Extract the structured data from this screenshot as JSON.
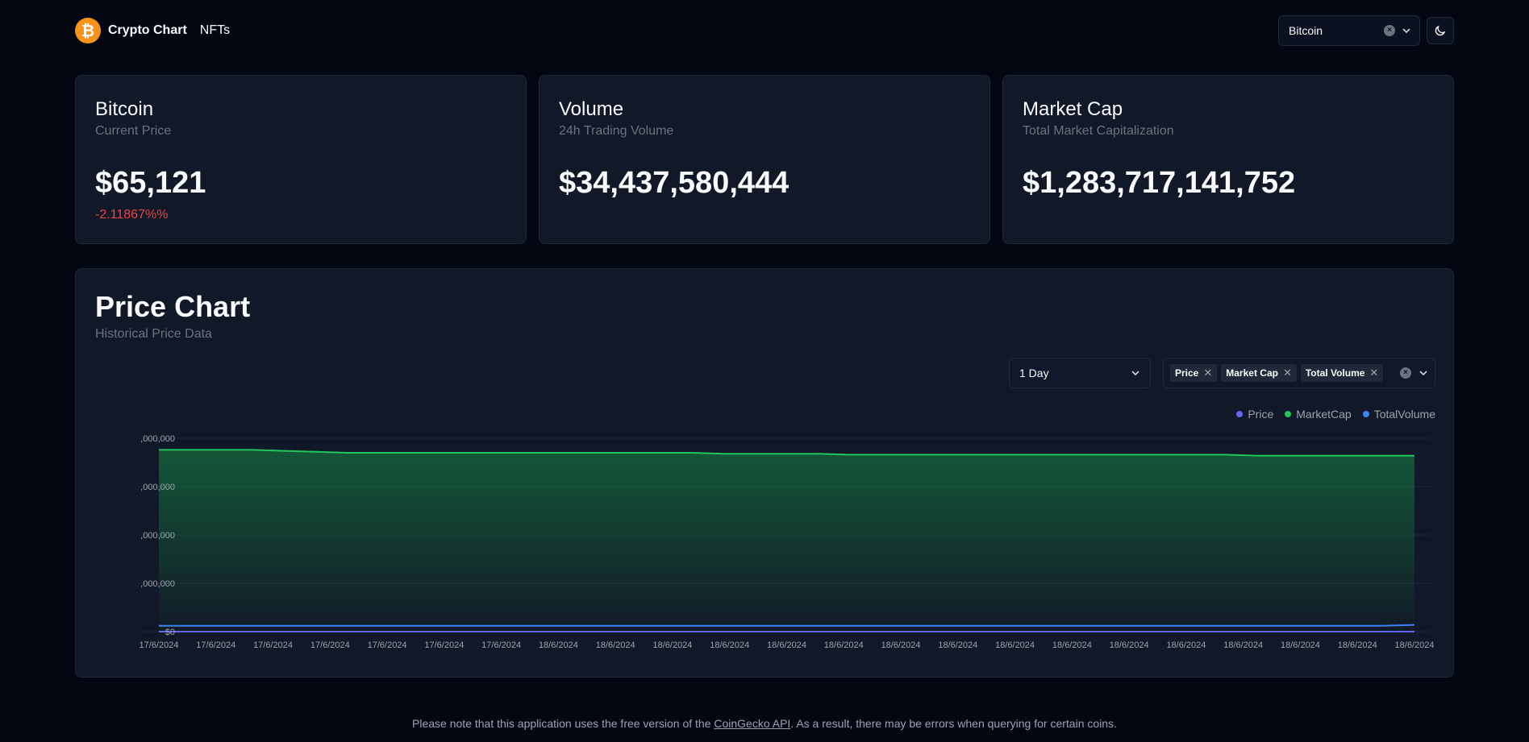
{
  "header": {
    "logo_glyph": "₿",
    "brand": "Crypto Chart",
    "nav_nfts": "NFTs",
    "coin_select": {
      "value": "Bitcoin"
    }
  },
  "cards": {
    "price": {
      "title": "Bitcoin",
      "subtitle": "Current Price",
      "value": "$65,121",
      "change": "-2.11867%%"
    },
    "volume": {
      "title": "Volume",
      "subtitle": "24h Trading Volume",
      "value": "$34,437,580,444"
    },
    "market_cap": {
      "title": "Market Cap",
      "subtitle": "Total Market Capitalization",
      "value": "$1,283,717,141,752"
    }
  },
  "chart": {
    "title": "Price Chart",
    "subtitle": "Historical Price Data",
    "range_select": {
      "value": "1 Day"
    },
    "metric_chips": [
      "Price",
      "Market Cap",
      "Total Volume"
    ],
    "legend": [
      "Price",
      "MarketCap",
      "TotalVolume"
    ]
  },
  "colors": {
    "price": "#6366f1",
    "market_cap": "#22c55e",
    "total_volume": "#3b82f6",
    "negative": "#ef4444"
  },
  "chart_data": {
    "type": "area",
    "series": [
      {
        "name": "MarketCap",
        "color": "#22c55e",
        "values": [
          0.94,
          0.94,
          0.94,
          0.94,
          0.935,
          0.93,
          0.925,
          0.925,
          0.925,
          0.925,
          0.925,
          0.925,
          0.925,
          0.925,
          0.925,
          0.925,
          0.925,
          0.925,
          0.92,
          0.92,
          0.92,
          0.92,
          0.915,
          0.915,
          0.915,
          0.915,
          0.915,
          0.915,
          0.915,
          0.915,
          0.915,
          0.915,
          0.915,
          0.915,
          0.915,
          0.91,
          0.91,
          0.91,
          0.91,
          0.91,
          0.91
        ]
      },
      {
        "name": "TotalVolume",
        "color": "#3b82f6",
        "values": [
          0.03,
          0.03,
          0.03,
          0.03,
          0.03,
          0.03,
          0.03,
          0.03,
          0.03,
          0.03,
          0.03,
          0.03,
          0.03,
          0.03,
          0.03,
          0.03,
          0.03,
          0.03,
          0.03,
          0.03,
          0.03,
          0.03,
          0.03,
          0.03,
          0.03,
          0.03,
          0.03,
          0.03,
          0.03,
          0.03,
          0.03,
          0.03,
          0.03,
          0.03,
          0.03,
          0.03,
          0.03,
          0.03,
          0.03,
          0.03,
          0.035
        ]
      },
      {
        "name": "Price",
        "color": "#6366f1",
        "values": [
          0.0,
          0.0,
          0.0,
          0.0,
          0.0,
          0.0,
          0.0,
          0.0,
          0.0,
          0.0,
          0.0,
          0.0,
          0.0,
          0.0,
          0.0,
          0.0,
          0.0,
          0.0,
          0.0,
          0.0,
          0.0,
          0.0,
          0.0,
          0.0,
          0.0,
          0.0,
          0.0,
          0.0,
          0.0,
          0.0,
          0.0,
          0.0,
          0.0,
          0.0,
          0.0,
          0.0,
          0.0,
          0.0,
          0.0,
          0.0,
          0.0
        ]
      }
    ],
    "y_tick_labels": [
      ",000,000",
      ",000,000",
      ",000,000",
      ",000,000",
      "$0"
    ],
    "x_tick_labels": [
      "17/6/2024",
      "17/6/2024",
      "17/6/2024",
      "17/6/2024",
      "17/6/2024",
      "17/6/2024",
      "17/6/2024",
      "18/6/2024",
      "18/6/2024",
      "18/6/2024",
      "18/6/2024",
      "18/6/2024",
      "18/6/2024",
      "18/6/2024",
      "18/6/2024",
      "18/6/2024",
      "18/6/2024",
      "18/6/2024",
      "18/6/2024",
      "18/6/2024",
      "18/6/2024",
      "18/6/2024",
      "18/6/2024"
    ],
    "grid": true,
    "legend_position": "top-right"
  },
  "footer": {
    "text_before": "Please note that this application uses the free version of the ",
    "link": "CoinGecko API",
    "text_after": ". As a result, there may be errors when querying for certain coins."
  }
}
